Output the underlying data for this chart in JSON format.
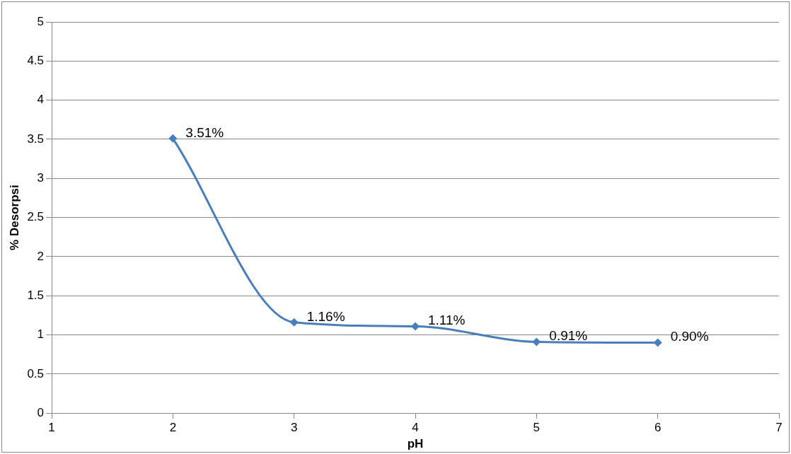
{
  "chart_data": {
    "type": "line",
    "xlabel": "pH",
    "ylabel": "% Desorpsi",
    "x": [
      2,
      3,
      4,
      5,
      6
    ],
    "values": [
      3.51,
      1.16,
      1.11,
      0.91,
      0.9
    ],
    "value_labels": [
      "3.51%",
      "1.16%",
      "1.11%",
      "0.91%",
      "0.90%"
    ],
    "color": "#4a7ebb",
    "xlim": [
      1,
      7
    ],
    "xticks": [
      1,
      2,
      3,
      4,
      5,
      6,
      7
    ],
    "ylim": [
      0,
      5
    ],
    "yticks": [
      0,
      0.5,
      1,
      1.5,
      2,
      2.5,
      3,
      3.5,
      4,
      4.5,
      5
    ],
    "grid": "y",
    "marker": "diamond",
    "line_style": "solid"
  }
}
